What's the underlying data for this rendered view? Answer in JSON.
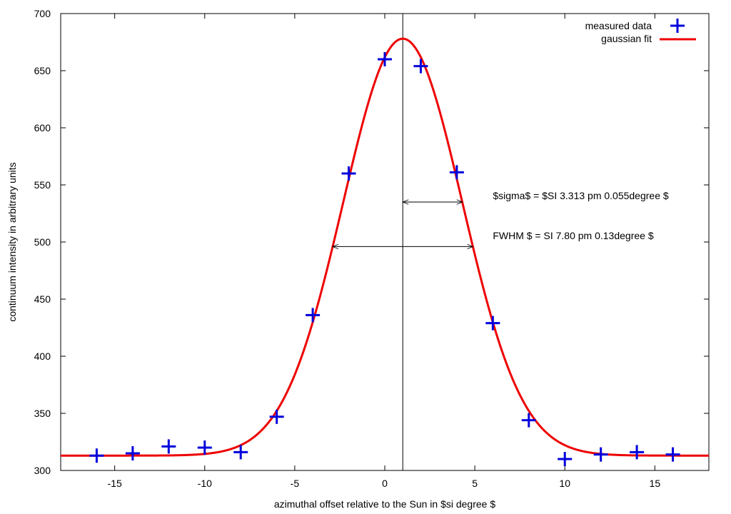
{
  "chart_data": {
    "type": "scatter",
    "xlabel": "azimuthal offset relative to the Sun in $si degree $",
    "ylabel": "continuum intensity in arbitrary units",
    "xlim": [
      -18,
      18
    ],
    "ylim": [
      300,
      700
    ],
    "xticks": [
      -15,
      -10,
      -5,
      0,
      5,
      10,
      15
    ],
    "yticks": [
      300,
      350,
      400,
      450,
      500,
      550,
      600,
      650,
      700
    ],
    "grid": false,
    "legend_position": "top-right",
    "series": [
      {
        "name": "measured data",
        "kind": "points",
        "marker": "plus",
        "color": "#0000dd",
        "x": [
          -16,
          -14,
          -12,
          -10,
          -8,
          -6,
          -4,
          -2,
          0,
          2,
          4,
          6,
          8,
          10,
          12,
          14,
          16
        ],
        "y": [
          313,
          315,
          321,
          320,
          316,
          347,
          436,
          560,
          660,
          654,
          561,
          429,
          344,
          310,
          314,
          316,
          314
        ]
      },
      {
        "name": "gaussian fit",
        "kind": "line",
        "color": "#ee0000",
        "model": {
          "baseline": 313,
          "amplitude": 365,
          "center": 1.0,
          "sigma": 3.313
        }
      }
    ],
    "vertical_line_x": 1.0,
    "annotations": [
      {
        "text": "$sigma$ =  $SI 3.313 pm 0.055degree $",
        "arrow_x": [
          1.0,
          4.313
        ],
        "arrow_y": 535
      },
      {
        "text": "FWHM $ = SI 7.80 pm 0.13degree $",
        "arrow_x": [
          -2.9,
          4.9
        ],
        "arrow_y": 496
      }
    ]
  }
}
